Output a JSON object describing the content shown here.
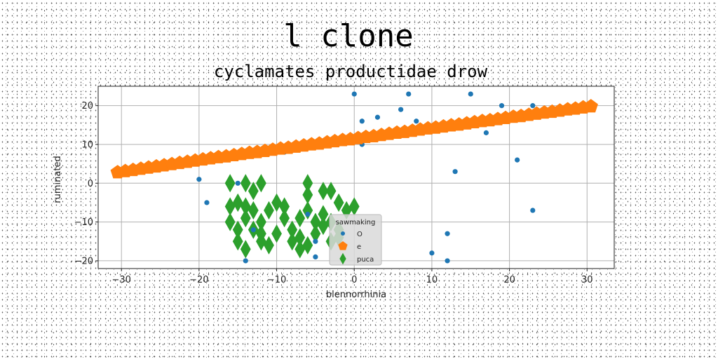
{
  "chart_data": {
    "type": "scatter",
    "suptitle": "l clone",
    "title": "cyclamates productidae drow",
    "xlabel": "blennorrhinia",
    "ylabel": "ruminated",
    "xlim": [
      -33,
      33.5
    ],
    "ylim": [
      -22,
      25
    ],
    "xticks": [
      -30,
      -20,
      -10,
      0,
      10,
      20,
      30
    ],
    "yticks": [
      -20,
      -10,
      0,
      10,
      20
    ],
    "grid": true,
    "legend": {
      "title": "sawmaking",
      "placement": "bottom-center"
    },
    "series": [
      {
        "name": "O",
        "marker": "circle",
        "color": "#1f77b4",
        "points": [
          [
            0,
            23
          ],
          [
            7,
            23
          ],
          [
            15,
            23
          ],
          [
            6,
            19
          ],
          [
            19,
            20
          ],
          [
            23,
            20
          ],
          [
            3,
            17
          ],
          [
            1,
            16
          ],
          [
            8,
            16
          ],
          [
            17,
            13
          ],
          [
            1,
            10
          ],
          [
            -9,
            8
          ],
          [
            21,
            6
          ],
          [
            13,
            3
          ],
          [
            -20,
            1
          ],
          [
            -15,
            0
          ],
          [
            -19,
            -5
          ],
          [
            -6,
            -8
          ],
          [
            23,
            -7
          ],
          [
            -13,
            -12
          ],
          [
            12,
            -13
          ],
          [
            -5,
            -15
          ],
          [
            10,
            -18
          ],
          [
            -5,
            -19
          ],
          [
            12,
            -20
          ],
          [
            -14,
            -20
          ]
        ]
      },
      {
        "name": "e",
        "marker": "pentagon",
        "color": "#ff7f0e",
        "points": [
          [
            -30.5,
            2.8
          ],
          [
            -29.5,
            3.1
          ],
          [
            -28.5,
            3.4
          ],
          [
            -27.5,
            3.7
          ],
          [
            -26.5,
            4.0
          ],
          [
            -25.5,
            4.3
          ],
          [
            -24.5,
            4.6
          ],
          [
            -23.5,
            4.9
          ],
          [
            -22.5,
            5.2
          ],
          [
            -21.5,
            5.5
          ],
          [
            -20.5,
            5.8
          ],
          [
            -19.5,
            6.1
          ],
          [
            -18.5,
            6.4
          ],
          [
            -17.5,
            6.7
          ],
          [
            -16.5,
            6.9
          ],
          [
            -15.5,
            7.2
          ],
          [
            -14.5,
            7.5
          ],
          [
            -13.5,
            7.8
          ],
          [
            -12.5,
            8.0
          ],
          [
            -11.5,
            8.3
          ],
          [
            -10.5,
            8.6
          ],
          [
            -9.5,
            8.9
          ],
          [
            -8.5,
            9.1
          ],
          [
            -7.5,
            9.4
          ],
          [
            -6.5,
            9.7
          ],
          [
            -5.5,
            10.0
          ],
          [
            -4.5,
            10.2
          ],
          [
            -3.5,
            10.5
          ],
          [
            -2.5,
            10.8
          ],
          [
            -1.5,
            11.1
          ],
          [
            -0.5,
            11.3
          ],
          [
            0.5,
            11.6
          ],
          [
            1.5,
            11.9
          ],
          [
            2.5,
            12.1
          ],
          [
            3.5,
            12.4
          ],
          [
            4.5,
            12.7
          ],
          [
            5.5,
            13.0
          ],
          [
            6.5,
            13.2
          ],
          [
            7.5,
            13.5
          ],
          [
            8.5,
            13.8
          ],
          [
            9.5,
            14.1
          ],
          [
            10.5,
            14.3
          ],
          [
            11.5,
            14.6
          ],
          [
            12.5,
            14.9
          ],
          [
            13.5,
            15.1
          ],
          [
            14.5,
            15.4
          ],
          [
            15.5,
            15.7
          ],
          [
            16.5,
            16.0
          ],
          [
            17.5,
            16.2
          ],
          [
            18.5,
            16.5
          ],
          [
            19.5,
            16.8
          ],
          [
            20.5,
            17.1
          ],
          [
            21.5,
            17.3
          ],
          [
            22.5,
            17.6
          ],
          [
            23.5,
            17.9
          ],
          [
            24.5,
            18.2
          ],
          [
            25.5,
            18.4
          ],
          [
            26.5,
            18.7
          ],
          [
            27.5,
            19.0
          ],
          [
            28.5,
            19.2
          ],
          [
            29.5,
            19.5
          ],
          [
            30.5,
            19.8
          ]
        ]
      },
      {
        "name": "puca",
        "marker": "diamond",
        "color": "#2ca02c",
        "points": [
          [
            -16,
            0
          ],
          [
            -14,
            0
          ],
          [
            -12,
            0
          ],
          [
            -13,
            -2
          ],
          [
            -6,
            0
          ],
          [
            -4,
            -2
          ],
          [
            -6,
            -3
          ],
          [
            -3,
            -2
          ],
          [
            -10,
            -5
          ],
          [
            -9,
            -6
          ],
          [
            -14,
            -6
          ],
          [
            -13,
            -7
          ],
          [
            -15,
            -5
          ],
          [
            -16,
            -6
          ],
          [
            -11,
            -7
          ],
          [
            -6,
            -7
          ],
          [
            -4,
            -8
          ],
          [
            -2,
            -5
          ],
          [
            0,
            -6
          ],
          [
            -1,
            -7
          ],
          [
            -16,
            -10
          ],
          [
            -14,
            -9
          ],
          [
            -12,
            -10
          ],
          [
            -9,
            -9
          ],
          [
            -7,
            -9
          ],
          [
            -5,
            -10
          ],
          [
            -3,
            -10
          ],
          [
            -15,
            -12
          ],
          [
            -13,
            -12
          ],
          [
            -10,
            -13
          ],
          [
            -8,
            -12
          ],
          [
            -7,
            -14
          ],
          [
            -5,
            -13
          ],
          [
            -2,
            -12
          ],
          [
            -15,
            -15
          ],
          [
            -12,
            -15
          ],
          [
            -11,
            -16
          ],
          [
            -8,
            -15
          ],
          [
            -6,
            -16
          ],
          [
            -3,
            -15
          ],
          [
            -2,
            -14
          ],
          [
            -14,
            -17
          ],
          [
            -7,
            -17
          ],
          [
            -12,
            -13
          ],
          [
            -4,
            -11
          ]
        ]
      }
    ]
  }
}
